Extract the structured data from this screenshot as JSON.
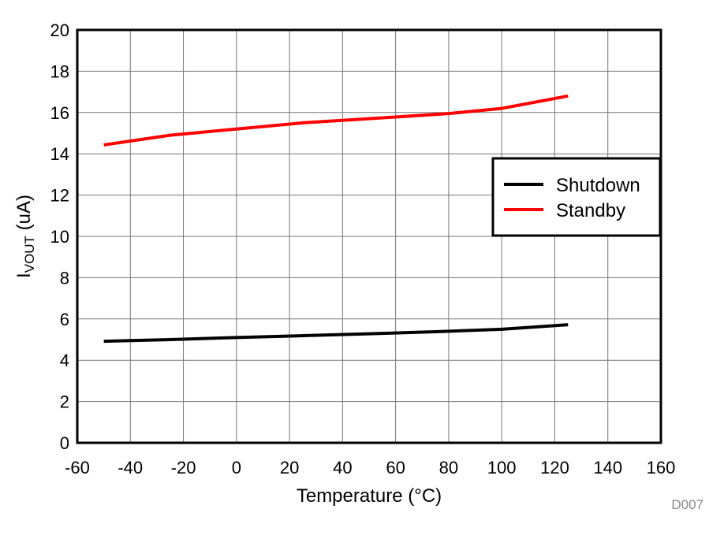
{
  "chart_data": {
    "type": "line",
    "xlabel": "Temperature (°C)",
    "ylabel_main": "I",
    "ylabel_sub": "VOUT",
    "ylabel_unit": " (uA)",
    "xlim": [
      -60,
      160
    ],
    "ylim": [
      0,
      20
    ],
    "xticks": [
      -60,
      -40,
      -20,
      0,
      20,
      40,
      60,
      80,
      100,
      120,
      140,
      160
    ],
    "yticks": [
      0,
      2,
      4,
      6,
      8,
      10,
      12,
      14,
      16,
      18,
      20
    ],
    "grid": true,
    "legend_position": "right",
    "series": [
      {
        "name": "Shutdown",
        "color": "#000000",
        "x": [
          -50,
          -25,
          0,
          25,
          50,
          75,
          100,
          125
        ],
        "y": [
          4.92,
          5.0,
          5.1,
          5.19,
          5.28,
          5.38,
          5.5,
          5.72
        ]
      },
      {
        "name": "Standby",
        "color": "#ff0000",
        "x": [
          -50,
          -25,
          0,
          25,
          50,
          80,
          100,
          125
        ],
        "y": [
          14.43,
          14.9,
          15.2,
          15.5,
          15.7,
          15.95,
          16.2,
          16.8
        ]
      }
    ],
    "annotation": "D007"
  }
}
